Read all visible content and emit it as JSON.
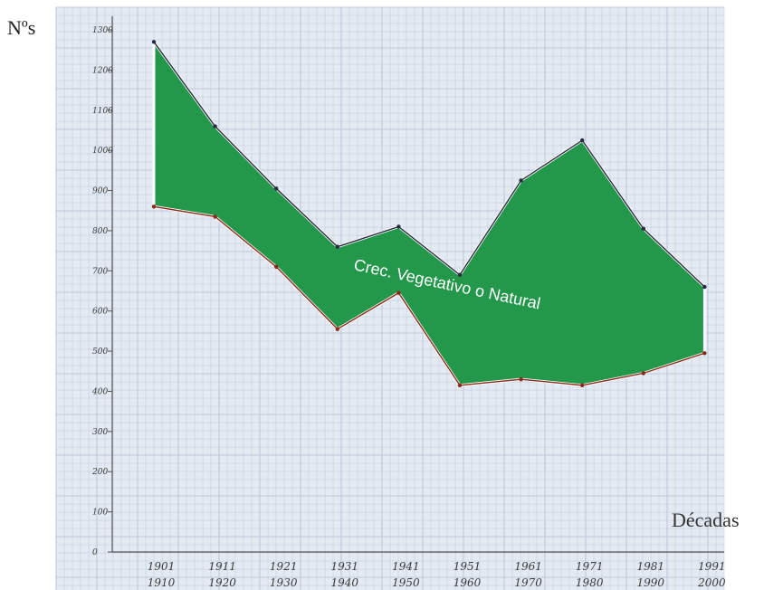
{
  "chart_data": {
    "type": "area",
    "title": "",
    "xlabel": "Décadas",
    "ylabel": "Nºs",
    "ylim": [
      0,
      1300
    ],
    "yticks": [
      "0",
      "100",
      "200",
      "300",
      "400",
      "500",
      "600",
      "700",
      "800",
      "900",
      "1000",
      "1100",
      "1200",
      "1300"
    ],
    "categories": [
      {
        "top": "1901",
        "bottom": "1910"
      },
      {
        "top": "1911",
        "bottom": "1920"
      },
      {
        "top": "1921",
        "bottom": "1930"
      },
      {
        "top": "1931",
        "bottom": "1940"
      },
      {
        "top": "1941",
        "bottom": "1950"
      },
      {
        "top": "1951",
        "bottom": "1960"
      },
      {
        "top": "1961",
        "bottom": "1970"
      },
      {
        "top": "1971",
        "bottom": "1980"
      },
      {
        "top": "1981",
        "bottom": "1990"
      },
      {
        "top": "1991",
        "bottom": "2000"
      }
    ],
    "series": [
      {
        "values": [
          1270,
          1060,
          905,
          760,
          810,
          690,
          925,
          1025,
          805,
          660
        ],
        "color": "#2a2a40"
      },
      {
        "values": [
          860,
          835,
          710,
          555,
          645,
          415,
          430,
          415,
          445,
          495
        ],
        "color": "#8a2a1a"
      }
    ],
    "fill_color": "#23974a",
    "annotation": "Crec. Vegetativo o Natural",
    "grid": true,
    "grid_color": "#bcc9da",
    "background": "#e3eaf2"
  }
}
